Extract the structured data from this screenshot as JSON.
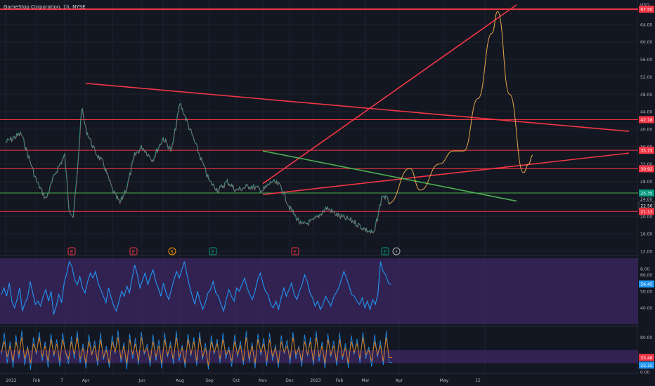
{
  "header": {
    "title": "GameStop Corporation, 1h, NYSE"
  },
  "chart_data": [
    {
      "type": "line",
      "name": "price",
      "currency": "USD",
      "ylim": [
        12,
        68
      ],
      "y_ticks": [
        "64.00",
        "60.00",
        "56.00",
        "52.00",
        "48.00",
        "44.00",
        "40.00",
        "36.00",
        "32.00",
        "28.00",
        "24.00",
        "20.00",
        "16.00",
        "12.00",
        "8.00"
      ],
      "x_ticks": [
        "2022",
        "Feb",
        "7",
        "Apr",
        "Jun",
        "Aug",
        "Sep",
        "Oct",
        "Nov",
        "Dec",
        "2023",
        "Feb",
        "Mar",
        "Apr",
        "May",
        "15"
      ],
      "price_badges": [
        {
          "label": "USD",
          "value": null
        },
        {
          "label": "67.50",
          "value": 67.5,
          "color": "#f23645"
        },
        {
          "label": "42.18",
          "value": 42.18,
          "color": "#f23645"
        },
        {
          "label": "35.15",
          "value": 35.15,
          "color": "#f23645"
        },
        {
          "label": "30.92",
          "value": 30.92,
          "color": "#f23645"
        },
        {
          "label": "25.35",
          "value": 25.35,
          "color": "#089981"
        },
        {
          "label": "22.50",
          "value": 22.5,
          "color": "#131722"
        },
        {
          "label": "21.13",
          "value": 21.13,
          "color": "#f23645"
        }
      ],
      "horizontal_levels": [
        {
          "value": 67.5,
          "color": "#f23645"
        },
        {
          "value": 42.18,
          "color": "#f23645"
        },
        {
          "value": 35.15,
          "color": "#f23645"
        },
        {
          "value": 30.92,
          "color": "#f23645"
        },
        {
          "value": 25.35,
          "color": "#4caf50"
        },
        {
          "value": 21.13,
          "color": "#f23645"
        }
      ],
      "trend_lines": [
        {
          "from": [
            "Apr 2022",
            50.5
          ],
          "to": [
            "May 15 2023",
            39.5
          ],
          "color": "#f23645"
        },
        {
          "from": [
            "Nov 2022",
            27.5
          ],
          "to": [
            "Apr 2023",
            68.5
          ],
          "color": "#f23645"
        },
        {
          "from": [
            "Nov 2022",
            25.0
          ],
          "to": [
            "May 15 2023",
            34.5
          ],
          "color": "#f23645"
        },
        {
          "from": [
            "Nov 2022",
            35.0
          ],
          "to": [
            "Apr 2023",
            23.5
          ],
          "color": "#4caf50"
        }
      ],
      "series_path": [
        [
          "Jan 2022",
          37
        ],
        [
          "Jan 2022",
          39
        ],
        [
          "Feb 2022",
          28
        ],
        [
          "Feb 2022",
          24
        ],
        [
          "Feb 2022",
          30
        ],
        [
          "Mar 2022",
          34
        ],
        [
          "Mar 2022",
          22
        ],
        [
          "Mar 2022",
          20
        ],
        [
          "Mar 2022",
          30
        ],
        [
          "Mar 2022",
          45
        ],
        [
          "Apr 2022",
          40
        ],
        [
          "Apr 2022",
          35
        ],
        [
          "Apr 2022",
          32
        ],
        [
          "May 2022",
          26
        ],
        [
          "May 2022",
          23
        ],
        [
          "May 2022",
          27
        ],
        [
          "May 2022",
          34
        ],
        [
          "Jun 2022",
          36
        ],
        [
          "Jun 2022",
          33
        ],
        [
          "Jul 2022",
          38
        ],
        [
          "Jul 2022",
          35
        ],
        [
          "Aug 2022",
          46
        ],
        [
          "Aug 2022",
          40
        ],
        [
          "Aug 2022",
          34
        ],
        [
          "Sep 2022",
          28
        ],
        [
          "Sep 2022",
          26
        ],
        [
          "Sep 2022",
          28
        ],
        [
          "Oct 2022",
          26
        ],
        [
          "Oct 2022",
          27
        ],
        [
          "Nov 2022",
          26
        ],
        [
          "Nov 2022",
          28
        ],
        [
          "Nov 2022",
          27
        ],
        [
          "Dec 2022",
          22
        ],
        [
          "Dec 2022",
          18
        ],
        [
          "Jan 2023",
          19
        ],
        [
          "Jan 2023",
          22
        ],
        [
          "Feb 2023",
          20
        ],
        [
          "Feb 2023",
          19
        ],
        [
          "Mar 2023",
          17
        ],
        [
          "Mar 2023",
          16
        ],
        [
          "Mar 2023",
          25
        ],
        [
          "Mar 2023",
          23
        ]
      ],
      "projection_path": [
        [
          "Mar 2023",
          23
        ],
        [
          "Apr 2023",
          31
        ],
        [
          "Apr 2023",
          26
        ],
        [
          "Apr 2023",
          32
        ],
        [
          "Apr 2023",
          35
        ],
        [
          "Apr 2023",
          35
        ],
        [
          "May 2023",
          47
        ],
        [
          "May 2023",
          62
        ],
        [
          "May 2023",
          67
        ],
        [
          "May 2023",
          48
        ],
        [
          "May 2023",
          30
        ],
        [
          "May 2023",
          32
        ],
        [
          "May 2023",
          34
        ]
      ],
      "earnings_markers": [
        {
          "label": "E",
          "color": "#f23645"
        },
        {
          "label": "E",
          "color": "#f23645"
        },
        {
          "label": "$",
          "color": "#ff9800"
        },
        {
          "label": "E",
          "color": "#089981"
        },
        {
          "label": "E",
          "color": "#f23645"
        },
        {
          "label": "E",
          "color": "#089981"
        },
        {
          "label": "⚡",
          "color": "#b2b5be"
        }
      ]
    },
    {
      "type": "line",
      "name": "oscillator-1",
      "ylim": [
        30,
        70
      ],
      "y_ticks": [
        "60.00",
        "50.00",
        "40.00"
      ],
      "badge": {
        "label": "54.45",
        "value": 54.45,
        "color": "#2196f3"
      },
      "band": [
        30,
        70
      ],
      "band_color": "#4a2c7a",
      "values": [
        48,
        52,
        47,
        55,
        44,
        40,
        45,
        52,
        38,
        43,
        46,
        56,
        49,
        42,
        44,
        41,
        47,
        51,
        44,
        50,
        36,
        41,
        48,
        43,
        55,
        61,
        68,
        65,
        57,
        54,
        59,
        52,
        49,
        56,
        61,
        58,
        62,
        55,
        51,
        47,
        43,
        52,
        46,
        41,
        38,
        44,
        50,
        47,
        53,
        49,
        58,
        66,
        60,
        52,
        57,
        61,
        54,
        59,
        63,
        56,
        52,
        47,
        55,
        49,
        45,
        51,
        57,
        62,
        58,
        63,
        68,
        60,
        53,
        47,
        42,
        50,
        44,
        39,
        43,
        49,
        51,
        56,
        49,
        47,
        42,
        38,
        45,
        51,
        47,
        44,
        52,
        50,
        54,
        58,
        52,
        48,
        45,
        50,
        57,
        61,
        55,
        50,
        48,
        42,
        40,
        44,
        39,
        46,
        52,
        47,
        51,
        55,
        48,
        45,
        50,
        54,
        60,
        56,
        49,
        46,
        41,
        44,
        39,
        42,
        47,
        44,
        41,
        46,
        49,
        52,
        57,
        62,
        58,
        53,
        48,
        47,
        44,
        42,
        46,
        40,
        44,
        39,
        45,
        42,
        48,
        68,
        62,
        60,
        55,
        54
      ]
    },
    {
      "type": "line",
      "name": "oscillator-2",
      "ylim": [
        0,
        100
      ],
      "y_ticks": [
        "80.00",
        "20.00",
        "0.00"
      ],
      "badges": [
        {
          "label": "33.46",
          "value": 33.46,
          "color": "#f23645"
        },
        {
          "label": "22.15",
          "value": 22.15,
          "color": "#2196f3"
        }
      ],
      "band": [
        20,
        50
      ],
      "band_color": "#4a2c7a",
      "series": [
        {
          "color": "#2196f3",
          "values": [
            40,
            90,
            20,
            70,
            10,
            85,
            30,
            95,
            15,
            60,
            5,
            80,
            40,
            92,
            25,
            70,
            10,
            88,
            35,
            75,
            12,
            90,
            45,
            18,
            82,
            30,
            94,
            20,
            65,
            8,
            86,
            38,
            72,
            14,
            90,
            28,
            60,
            10,
            84,
            42,
            96,
            22,
            68,
            6,
            88,
            30,
            78,
            16,
            92,
            40,
            64,
            12,
            86,
            26,
            74,
            8,
            90,
            34,
            70,
            18,
            94,
            24,
            62,
            10,
            88,
            36,
            80,
            14,
            92,
            28,
            66,
            6,
            84,
            40,
            76,
            20,
            90,
            30,
            58,
            12,
            86,
            34,
            72,
            16,
            94,
            22,
            68,
            8,
            88,
            38,
            78,
            14,
            90,
            26,
            62,
            10,
            84,
            42,
            74,
            18,
            92,
            30,
            60,
            12,
            86,
            36,
            80,
            16,
            94,
            24,
            70,
            8,
            88,
            34,
            72,
            14,
            90,
            28,
            66,
            10,
            84,
            40,
            76,
            20,
            92,
            30,
            58,
            12,
            86,
            34,
            72,
            16,
            94,
            22,
            22
          ]
        },
        {
          "color": "#f57c00",
          "values": [
            45,
            70,
            35,
            60,
            25,
            70,
            40,
            80,
            30,
            55,
            20,
            65,
            45,
            80,
            35,
            60,
            25,
            75,
            40,
            65,
            25,
            75,
            45,
            30,
            70,
            40,
            80,
            30,
            55,
            20,
            70,
            40,
            60,
            25,
            75,
            35,
            50,
            20,
            70,
            45,
            80,
            30,
            60,
            20,
            75,
            40,
            65,
            25,
            80,
            45,
            55,
            25,
            70,
            35,
            60,
            20,
            75,
            40,
            60,
            30,
            80,
            35,
            55,
            20,
            75,
            40,
            70,
            25,
            80,
            35,
            55,
            15,
            70,
            45,
            65,
            30,
            75,
            40,
            50,
            25,
            70,
            40,
            60,
            25,
            80,
            30,
            60,
            20,
            75,
            45,
            65,
            25,
            75,
            35,
            55,
            20,
            70,
            45,
            60,
            30,
            80,
            40,
            55,
            25,
            70,
            40,
            70,
            25,
            80,
            35,
            60,
            20,
            75,
            40,
            60,
            25,
            75,
            35,
            55,
            20,
            70,
            45,
            65,
            30,
            80,
            40,
            50,
            25,
            70,
            40,
            60,
            25,
            80,
            33,
            33
          ]
        }
      ]
    }
  ]
}
